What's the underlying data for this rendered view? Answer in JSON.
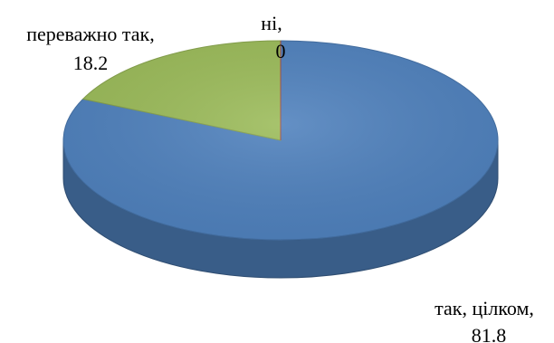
{
  "chart_data": {
    "type": "pie",
    "style": "3d",
    "slices": [
      {
        "label": "так, цілком",
        "value": 81.8,
        "color": "#4F81BD",
        "value_text": "81.8"
      },
      {
        "label": "переважно так",
        "value": 18.2,
        "color": "#9BBB59",
        "value_text": "18.2"
      },
      {
        "label": "ні",
        "value": 0,
        "color": "#C0504D",
        "value_text": "0"
      }
    ],
    "legend": "none"
  }
}
